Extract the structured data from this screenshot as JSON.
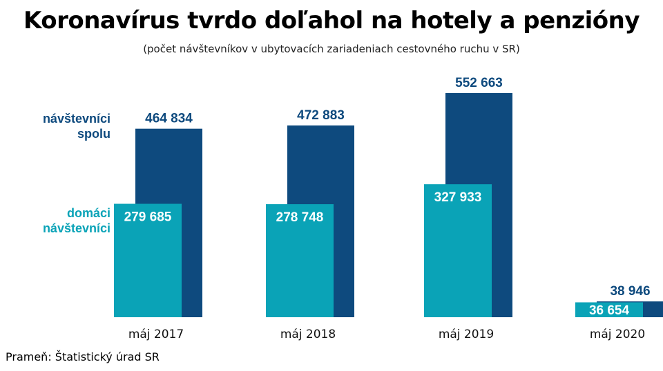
{
  "title": "Koronavírus tvrdo doľahol na hotely a penzióny",
  "subtitle": "(počet návštevníkov v ubytovacích zariadeniach cestovného ruchu v SR)",
  "source": "Prameň: Štatistický úrad SR",
  "colors": {
    "total": "#0e4a7e",
    "domestic": "#0aa3b7"
  },
  "chart_data": {
    "type": "bar",
    "categories": [
      "máj 2017",
      "máj 2018",
      "máj 2019",
      "máj 2020"
    ],
    "series": [
      {
        "name": "návštevníci\nspolu",
        "values": [
          464834,
          472883,
          552663,
          38946
        ],
        "labels": [
          "464 834",
          "472 883",
          "552 663",
          "38 946"
        ]
      },
      {
        "name": "domáci\nnávštevníci",
        "values": [
          279685,
          278748,
          327933,
          36654
        ],
        "labels": [
          "279 685",
          "278 748",
          "327 933",
          "36 654"
        ]
      }
    ],
    "grid": false
  }
}
